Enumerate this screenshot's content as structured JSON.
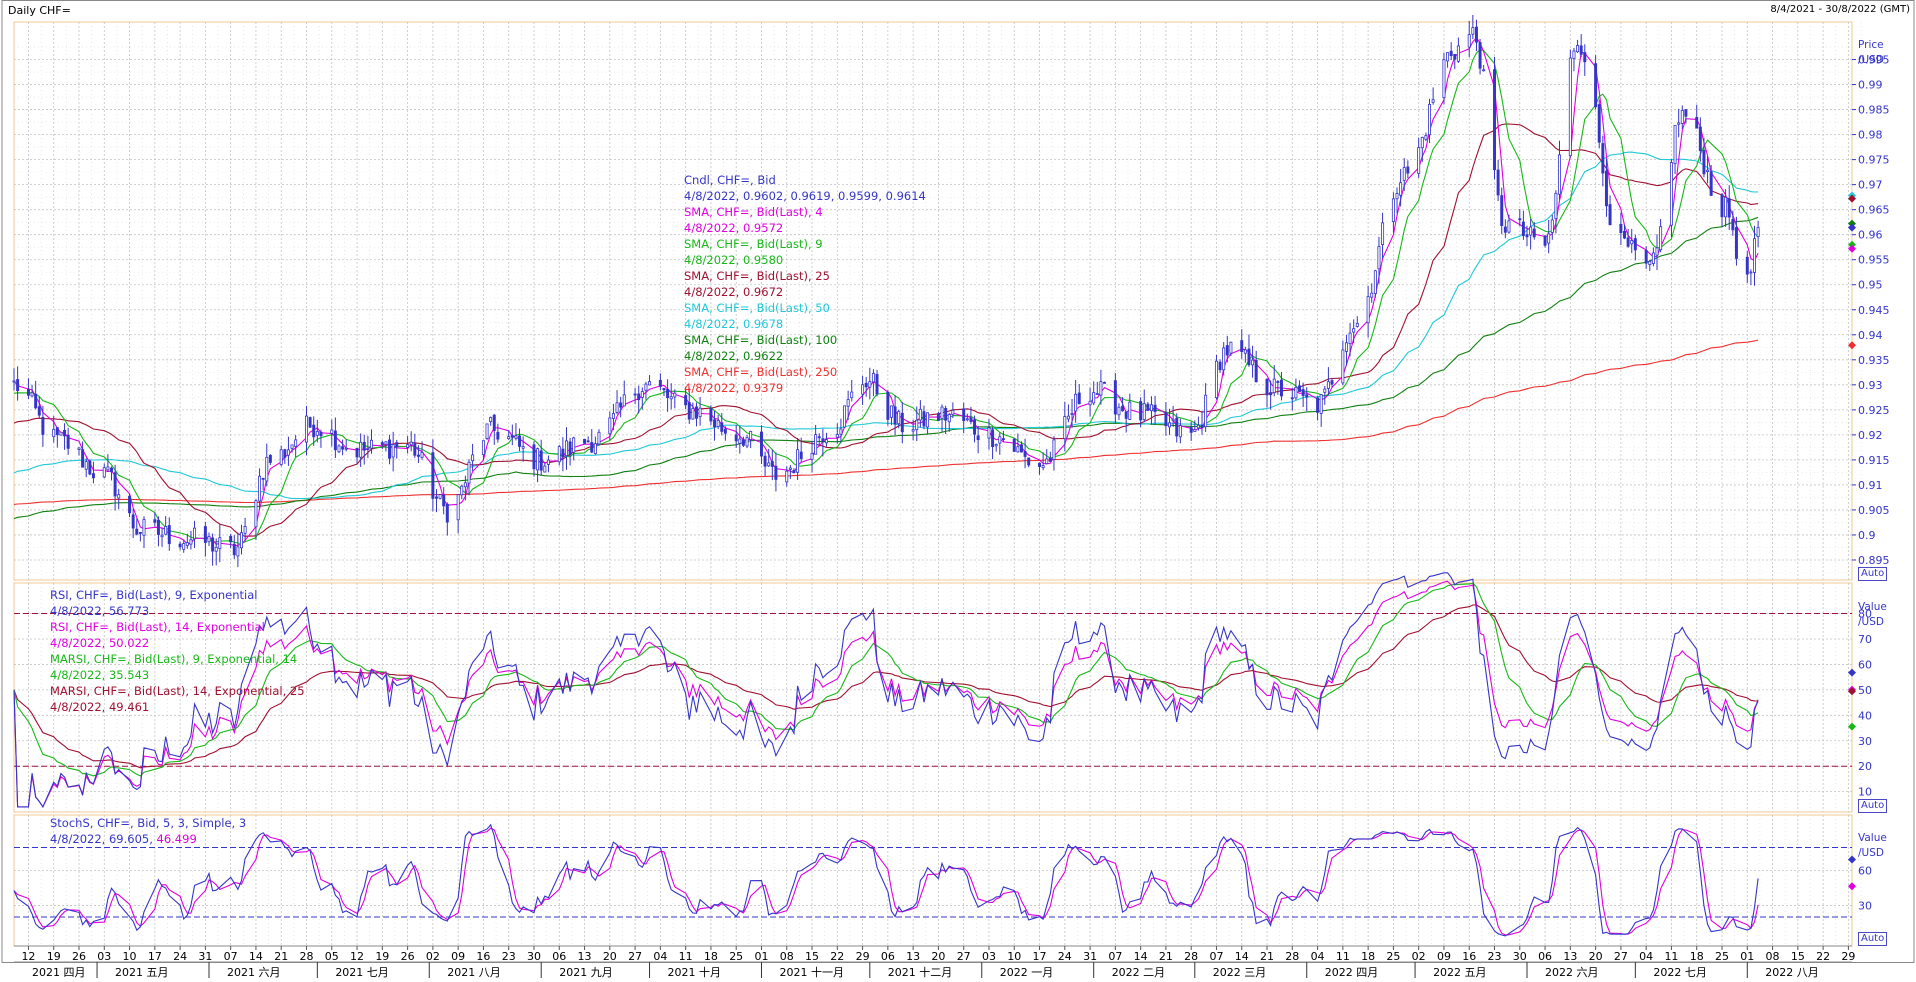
{
  "header": {
    "title": "Daily CHF=",
    "range": "8/4/2021 - 30/8/2022 (GMT)"
  },
  "auto_label": "Auto",
  "axis_units": {
    "price": [
      "Price",
      "/USD"
    ],
    "rsi": [
      "Value",
      "/USD"
    ],
    "stoch": [
      "Value",
      "/USD"
    ]
  },
  "legends": {
    "price": [
      {
        "text": "Cndl, CHF=, Bid",
        "color": "#3535c8"
      },
      {
        "text": "4/8/2022, 0.9602, 0.9619, 0.9599, 0.9614",
        "color": "#3535c8"
      },
      {
        "text": "SMA, CHF=, Bid(Last),  4",
        "color": "#e000e0"
      },
      {
        "text": "4/8/2022, 0.9572",
        "color": "#e000e0"
      },
      {
        "text": "SMA, CHF=, Bid(Last),  9",
        "color": "#18b818"
      },
      {
        "text": "4/8/2022, 0.9580",
        "color": "#18b818"
      },
      {
        "text": "SMA, CHF=, Bid(Last),  25",
        "color": "#a01030"
      },
      {
        "text": "4/8/2022, 0.9672",
        "color": "#a01030"
      },
      {
        "text": "SMA, CHF=, Bid(Last),  50",
        "color": "#20c8d8"
      },
      {
        "text": "4/8/2022, 0.9678",
        "color": "#20c8d8"
      },
      {
        "text": "SMA, CHF=, Bid(Last),  100",
        "color": "#108010"
      },
      {
        "text": "4/8/2022, 0.9622",
        "color": "#108010"
      },
      {
        "text": "SMA, CHF=, Bid(Last),  250",
        "color": "#f03030"
      },
      {
        "text": "4/8/2022, 0.9379",
        "color": "#f03030"
      }
    ],
    "rsi": [
      {
        "text": "RSI, CHF=, Bid(Last),  9, Exponential",
        "color": "#3535c8"
      },
      {
        "text": "4/8/2022, 56.773",
        "color": "#3535c8"
      },
      {
        "text": "RSI, CHF=, Bid(Last),  14, Exponential",
        "color": "#e000e0"
      },
      {
        "text": "4/8/2022, 50.022",
        "color": "#e000e0"
      },
      {
        "text": "MARSI, CHF=, Bid(Last),  9, Exponential, 14",
        "color": "#18b818"
      },
      {
        "text": "4/8/2022, 35.543",
        "color": "#18b818"
      },
      {
        "text": "MARSI, CHF=, Bid(Last),  14, Exponential, 25",
        "color": "#a01030"
      },
      {
        "text": "4/8/2022, 49.461",
        "color": "#a01030"
      }
    ],
    "stoch_label": {
      "text": "StochS, CHF=, Bid,  5, 3, Simple, 3",
      "color": "#3535c8"
    },
    "stoch_date": {
      "text": "4/8/2022, 69.605,",
      "color": "#3535c8"
    },
    "stoch_val2": {
      "text": "46.499",
      "color": "#e000e0"
    }
  },
  "colors": {
    "price": "#3535c8",
    "sma4": "#e000e0",
    "sma9": "#18b818",
    "sma25": "#a01030",
    "sma50": "#20c8d8",
    "sma100": "#108010",
    "sma250": "#f03030",
    "grid": "#c4c4c4",
    "panel_border": "#f0c890",
    "refline": "#a01040"
  },
  "chart_data": [
    {
      "type": "candlestick",
      "panel": "price",
      "y_ticks": [
        "0.895",
        "0.9",
        "0.905",
        "0.91",
        "0.915",
        "0.92",
        "0.925",
        "0.93",
        "0.935",
        "0.94",
        "0.945",
        "0.95",
        "0.955",
        "0.96",
        "0.965",
        "0.97",
        "0.975",
        "0.98",
        "0.985",
        "0.99",
        "0.995"
      ],
      "ylim": [
        0.891,
        1.0025
      ],
      "x_start_date": "2021-04-08",
      "x_end_date": "2022-08-30",
      "keypoints": [
        [
          "2021-04-08",
          0.93
        ],
        [
          "2021-04-20",
          0.919
        ],
        [
          "2021-05-03",
          0.912
        ],
        [
          "2021-05-13",
          0.901
        ],
        [
          "2021-05-28",
          0.899
        ],
        [
          "2021-06-08",
          0.897
        ],
        [
          "2021-06-18",
          0.915
        ],
        [
          "2021-06-30",
          0.922
        ],
        [
          "2021-07-12",
          0.917
        ],
        [
          "2021-07-26",
          0.918
        ],
        [
          "2021-08-06",
          0.905
        ],
        [
          "2021-08-18",
          0.921
        ],
        [
          "2021-09-01",
          0.915
        ],
        [
          "2021-09-15",
          0.919
        ],
        [
          "2021-09-30",
          0.93
        ],
        [
          "2021-10-12",
          0.925
        ],
        [
          "2021-10-26",
          0.92
        ],
        [
          "2021-11-05",
          0.912
        ],
        [
          "2021-11-20",
          0.921
        ],
        [
          "2021-11-30",
          0.931
        ],
        [
          "2021-12-10",
          0.922
        ],
        [
          "2021-12-22",
          0.924
        ],
        [
          "2022-01-04",
          0.92
        ],
        [
          "2022-01-17",
          0.914
        ],
        [
          "2022-01-31",
          0.929
        ],
        [
          "2022-02-14",
          0.924
        ],
        [
          "2022-02-28",
          0.92
        ],
        [
          "2022-03-10",
          0.937
        ],
        [
          "2022-03-24",
          0.929
        ],
        [
          "2022-04-04",
          0.926
        ],
        [
          "2022-04-14",
          0.942
        ],
        [
          "2022-04-28",
          0.972
        ],
        [
          "2022-05-12",
          0.997
        ],
        [
          "2022-05-17",
          1.0
        ],
        [
          "2022-05-26",
          0.962
        ],
        [
          "2022-06-06",
          0.958
        ],
        [
          "2022-06-15",
          0.999
        ],
        [
          "2022-06-27",
          0.958
        ],
        [
          "2022-07-05",
          0.953
        ],
        [
          "2022-07-14",
          0.984
        ],
        [
          "2022-07-26",
          0.965
        ],
        [
          "2022-08-01",
          0.95
        ],
        [
          "2022-08-04",
          0.9614
        ]
      ],
      "sma_last": {
        "sma4": 0.9572,
        "sma9": 0.958,
        "sma25": 0.9672,
        "sma50": 0.9678,
        "sma100": 0.9622,
        "sma250": 0.9379
      }
    },
    {
      "type": "line",
      "panel": "rsi",
      "y_ticks": [
        "10",
        "20",
        "30",
        "40",
        "50",
        "60",
        "70",
        "80"
      ],
      "ylim": [
        2,
        92
      ],
      "reference_lines": [
        20,
        80
      ],
      "last_values": {
        "rsi9": 56.773,
        "rsi14": 50.022,
        "marsi9": 35.543,
        "marsi14": 49.461
      }
    },
    {
      "type": "line",
      "panel": "stochastic",
      "y_ticks": [
        "30",
        "60"
      ],
      "ylim": [
        -5,
        108
      ],
      "reference_lines": [
        20,
        80
      ],
      "last_values": {
        "k": 69.605,
        "d": 46.499
      }
    }
  ],
  "x_axis": {
    "day_labels": [
      "12",
      "19",
      "26",
      "03",
      "10",
      "17",
      "24",
      "31",
      "07",
      "14",
      "21",
      "28",
      "05",
      "12",
      "19",
      "26",
      "02",
      "09",
      "16",
      "23",
      "30",
      "06",
      "13",
      "20",
      "27",
      "04",
      "11",
      "18",
      "25",
      "01",
      "08",
      "15",
      "22",
      "29",
      "06",
      "13",
      "20",
      "27",
      "03",
      "10",
      "17",
      "24",
      "31",
      "07",
      "14",
      "21",
      "28",
      "07",
      "14",
      "21",
      "28",
      "04",
      "11",
      "18",
      "25",
      "02",
      "09",
      "16",
      "23",
      "30",
      "06",
      "13",
      "20",
      "27",
      "04",
      "11",
      "18",
      "25",
      "01",
      "08",
      "15",
      "22",
      "29"
    ],
    "months": [
      {
        "label": "2021 四月",
        "start": "2021-04-08"
      },
      {
        "label": "2021 五月",
        "start": "2021-05-01"
      },
      {
        "label": "2021 六月",
        "start": "2021-06-01"
      },
      {
        "label": "2021 七月",
        "start": "2021-07-01"
      },
      {
        "label": "2021 八月",
        "start": "2021-08-01"
      },
      {
        "label": "2021 九月",
        "start": "2021-09-01"
      },
      {
        "label": "2021 十月",
        "start": "2021-10-01"
      },
      {
        "label": "2021 十一月",
        "start": "2021-11-01"
      },
      {
        "label": "2021 十二月",
        "start": "2021-12-01"
      },
      {
        "label": "2022 一月",
        "start": "2022-01-01"
      },
      {
        "label": "2022 二月",
        "start": "2022-02-01"
      },
      {
        "label": "2022 三月",
        "start": "2022-03-01"
      },
      {
        "label": "2022 四月",
        "start": "2022-04-01"
      },
      {
        "label": "2022 五月",
        "start": "2022-05-01"
      },
      {
        "label": "2022 六月",
        "start": "2022-06-01"
      },
      {
        "label": "2022 七月",
        "start": "2022-07-01"
      },
      {
        "label": "2022 八月",
        "start": "2022-08-01"
      }
    ]
  }
}
